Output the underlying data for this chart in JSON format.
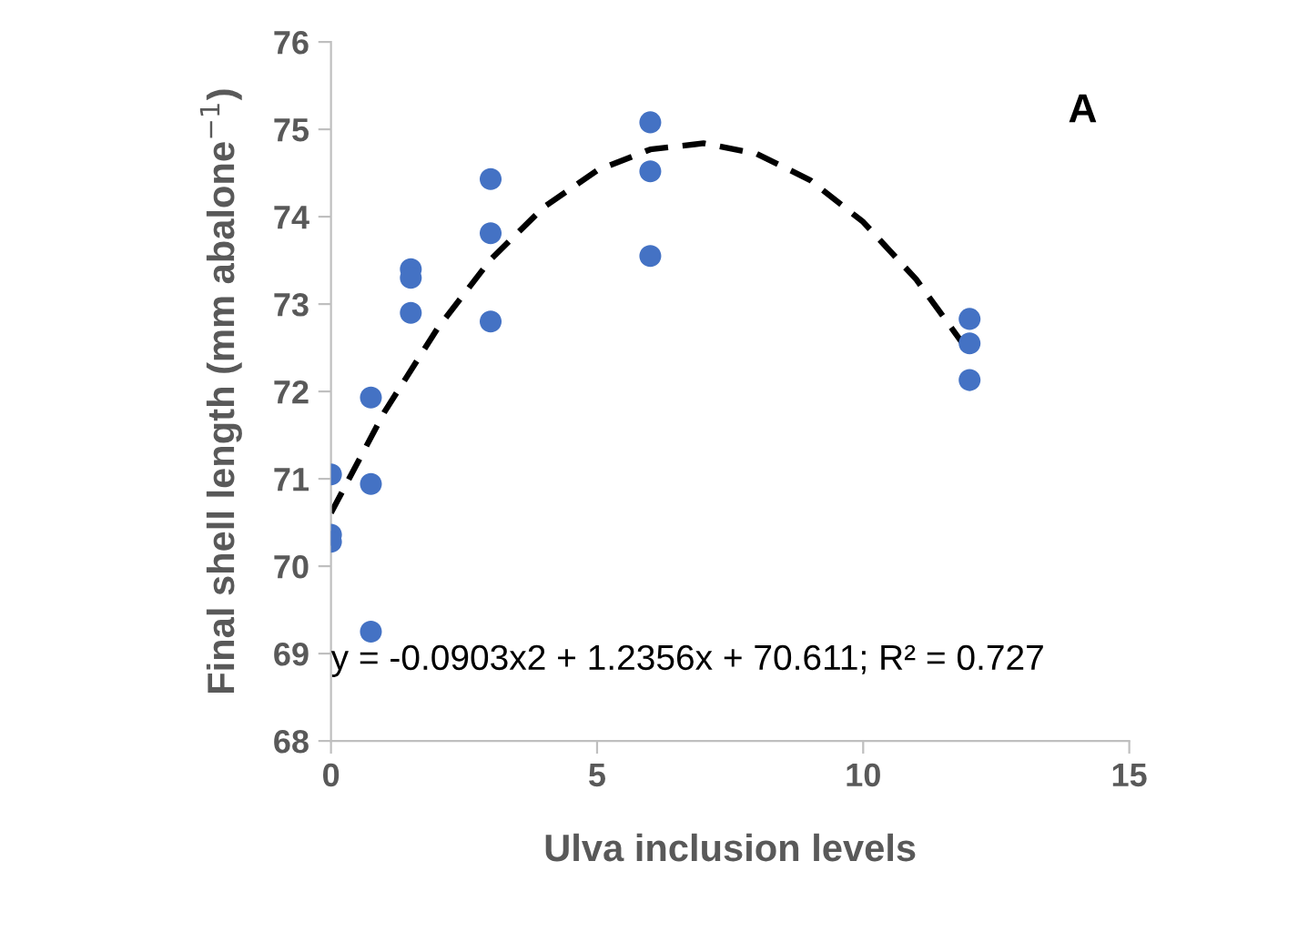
{
  "chart_data": {
    "type": "scatter",
    "xlabel": "Ulva inclusion levels",
    "ylabel": "Final shell length (mm abalone$^{−1}$)",
    "annotations": [
      "A",
      "y = -0.0903x2 + 1.2356x + 70.611; R² = 0.727"
    ],
    "series": [
      {
        "color": "#4472c4",
        "marker": "circle",
        "x": [
          0,
          0,
          0,
          0.75,
          0.75,
          0.75,
          1.5,
          1.5,
          1.5,
          3,
          3,
          3,
          6,
          6,
          6,
          12,
          12,
          12
        ],
        "values": [
          71.05,
          70.36,
          70.28,
          71.93,
          70.94,
          69.25,
          73.4,
          73.3,
          72.9,
          74.43,
          73.81,
          72.8,
          75.08,
          74.52,
          73.55,
          72.83,
          72.55,
          72.13
        ]
      },
      {
        "type": "line",
        "color": "#000000",
        "line_style": "dashed",
        "marker": "none",
        "x": [
          0,
          1,
          2,
          3,
          4,
          5,
          6,
          7,
          8,
          9,
          10,
          11,
          12
        ],
        "values": [
          70.61,
          71.76,
          72.72,
          73.51,
          74.11,
          74.53,
          74.77,
          74.84,
          74.72,
          74.42,
          73.94,
          73.28,
          72.44
        ]
      }
    ],
    "xlim": [
      0,
      15
    ],
    "xticks": [
      0,
      5,
      10,
      15
    ],
    "ylim": [
      68,
      76
    ],
    "yticks": [
      68,
      69,
      70,
      71,
      72,
      73,
      74,
      75,
      76
    ],
    "grid": false,
    "legend": false
  }
}
